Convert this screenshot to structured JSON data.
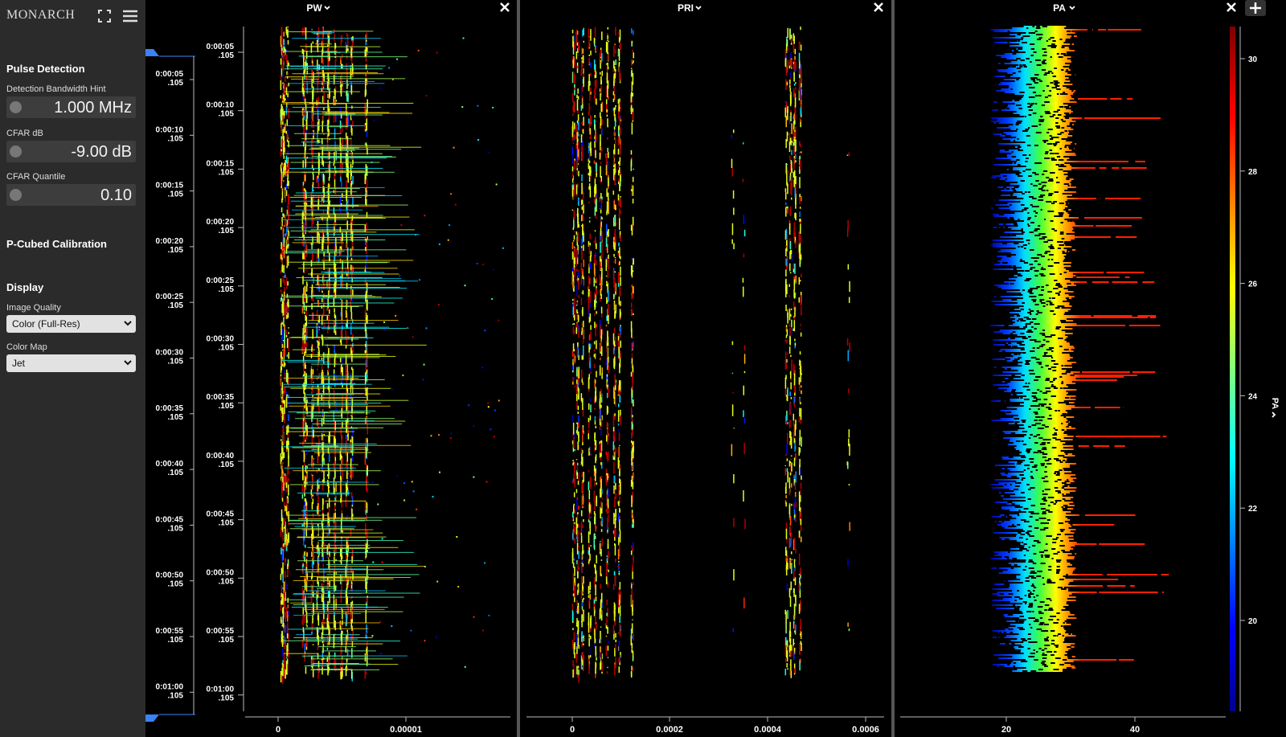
{
  "app_title": "MONARCH",
  "sidebar": {
    "pulse_detection": {
      "title": "Pulse Detection",
      "fields": [
        {
          "label": "Detection Bandwidth Hint",
          "value": "1.000 MHz"
        },
        {
          "label": "CFAR dB",
          "value": "-9.00 dB"
        },
        {
          "label": "CFAR Quantile",
          "value": "0.10"
        }
      ]
    },
    "calibration": {
      "title": "P-Cubed Calibration"
    },
    "display": {
      "title": "Display",
      "fields": [
        {
          "label": "Image Quality",
          "value": "Color (Full-Res)"
        },
        {
          "label": "Color Map",
          "value": "Jet"
        }
      ]
    }
  },
  "overview": {
    "time_ticks": [
      {
        "time": "0:00:05",
        "frac": ".105"
      },
      {
        "time": "0:00:10",
        "frac": ".105"
      },
      {
        "time": "0:00:15",
        "frac": ".105"
      },
      {
        "time": "0:00:20",
        "frac": ".105"
      },
      {
        "time": "0:00:25",
        "frac": ".105"
      },
      {
        "time": "0:00:30",
        "frac": ".105"
      },
      {
        "time": "0:00:35",
        "frac": ".105"
      },
      {
        "time": "0:00:40",
        "frac": ".105"
      },
      {
        "time": "0:00:45",
        "frac": ".105"
      },
      {
        "time": "0:00:50",
        "frac": ".105"
      },
      {
        "time": "0:00:55",
        "frac": ".105"
      },
      {
        "time": "0:01:00",
        "frac": ".105"
      }
    ]
  },
  "panels": [
    {
      "title": "PW",
      "x_ticks": [
        "0",
        "0.00001"
      ],
      "time_ticks": [
        {
          "time": "0:00:05",
          "frac": ".105"
        },
        {
          "time": "0:00:10",
          "frac": ".105"
        },
        {
          "time": "0:00:15",
          "frac": ".105"
        },
        {
          "time": "0:00:20",
          "frac": ".105"
        },
        {
          "time": "0:00:25",
          "frac": ".105"
        },
        {
          "time": "0:00:30",
          "frac": ".105"
        },
        {
          "time": "0:00:35",
          "frac": ".105"
        },
        {
          "time": "0:00:40",
          "frac": ".105"
        },
        {
          "time": "0:00:45",
          "frac": ".105"
        },
        {
          "time": "0:00:50",
          "frac": ".105"
        },
        {
          "time": "0:00:55",
          "frac": ".105"
        },
        {
          "time": "0:01:00",
          "frac": ".105"
        }
      ]
    },
    {
      "title": "PRI",
      "x_ticks": [
        "0",
        "0.0002",
        "0.0004",
        "0.0006"
      ]
    },
    {
      "title": "PA",
      "x_ticks": [
        "20",
        "40"
      ],
      "colorbar": {
        "label": "PA",
        "ticks": [
          "30",
          "28",
          "26",
          "24",
          "22",
          "20"
        ]
      }
    }
  ]
}
